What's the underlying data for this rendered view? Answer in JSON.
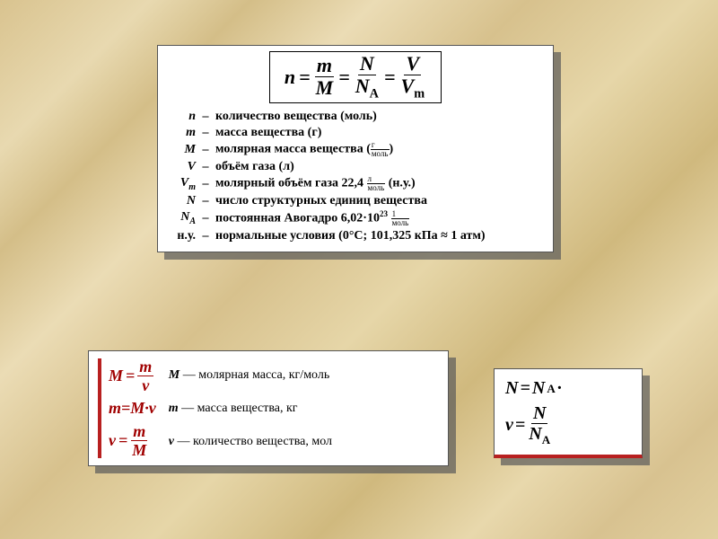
{
  "main": {
    "formula": {
      "lhs": "n",
      "eq": "=",
      "f1": {
        "num": "m",
        "den": "M"
      },
      "f2": {
        "num": "N",
        "den": "N",
        "den_sub": "A"
      },
      "f3": {
        "num": "V",
        "den": "V",
        "den_sub": "m"
      }
    },
    "defs": [
      {
        "sym": "n",
        "sub": "",
        "txt": "количество вещества (моль)"
      },
      {
        "sym": "m",
        "sub": "",
        "txt": "масса вещества (г)"
      },
      {
        "sym": "M",
        "sub": "",
        "txt": "молярная масса вещества (",
        "frac_n": "г",
        "frac_d": "моль",
        "txt2": ")"
      },
      {
        "sym": "V",
        "sub": "",
        "txt": "объём газа (л)"
      },
      {
        "sym": "V",
        "sub": "m",
        "txt": "молярный объём газа  22,4 ",
        "frac_n": "л",
        "frac_d": "моль",
        "txt2": " (н.у.)"
      },
      {
        "sym": "N",
        "sub": "",
        "txt": "число структурных единиц вещества"
      },
      {
        "sym": "N",
        "sub": "A",
        "txt": "постоянная Авогадро  6,02·10",
        "sup": "23",
        "txt1b": " ",
        "frac_n": "1",
        "frac_d": "моль"
      },
      {
        "sym": "н.у.",
        "sub": "",
        "txt": "нормальные условия  (0°С; 101,325 кПа ≈ 1 атм)",
        "nonitalic": true
      }
    ]
  },
  "bottomLeft": {
    "formulas": {
      "l1": {
        "lhs": "M",
        "eq": "=",
        "num": "m",
        "den": "ν"
      },
      "l2": {
        "text": "m=M·ν"
      },
      "l3": {
        "lhs": "ν",
        "eq": "=",
        "num": "m",
        "den": "M"
      }
    },
    "legend": [
      {
        "sym": "M",
        "txt": " — молярная масса, кг/моль"
      },
      {
        "sym": "m",
        "txt": " — масса вещества, кг"
      },
      {
        "sym": "ν",
        "txt": " — количество вещества, мол"
      }
    ]
  },
  "bottomRight": {
    "l1": {
      "lhs": "N",
      "eq": " =",
      "rhs": "N",
      "rhs_sub": "A",
      "tail": " ·"
    },
    "l2": {
      "lhs": "ν",
      "eq": "=",
      "num": "N",
      "den": "N",
      "den_sub": "A"
    }
  },
  "colors": {
    "accent_red": "#a00000",
    "border_red": "#b82020",
    "shadow": "rgba(90,90,90,0.7)",
    "card_bg": "#ffffff"
  }
}
